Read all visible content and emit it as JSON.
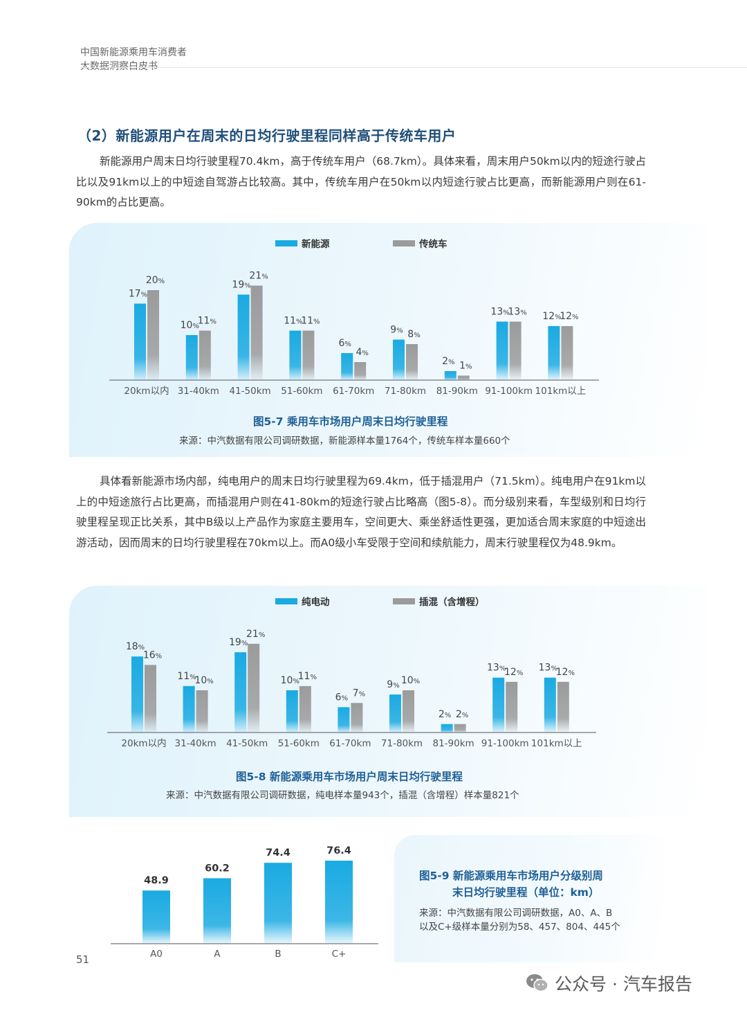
{
  "header": {
    "line1": "中国新能源乘用车消费者",
    "line2": "大数据洞察白皮书"
  },
  "section_title": "（2）新能源用户在周末的日均行驶里程同样高于传统车用户",
  "paragraph1": "新能源用户周末日均行驶里程70.4km，高于传统车用户（68.7km）。具体来看，周末用户50km以内的短途行驶占比以及91km以上的中短途自驾游占比较高。其中，传统车用户在50km以内短途行驶占比更高，而新能源用户则在61-90km的占比更高。",
  "paragraph2": "具体看新能源市场内部，纯电用户的周末日均行驶里程为69.4km，低于插混用户（71.5km）。纯电用户在91km以上的中短途旅行占比更高，而插混用户则在41-80km的短途行驶占比略高（图5-8）。而分级别来看，车型级别和日均行驶里程呈现正比关系，其中B级以上产品作为家庭主要用车，空间更大、乘坐舒适性更强，更加适合周末家庭的中短途出游活动，因而周末的日均行驶里程在70km以上。而A0级小车受限于空间和续航能力，周末行驶里程仅为48.9km。",
  "colors": {
    "blue": "#1aaae2",
    "gray": "#9b9b9b",
    "caption": "#1f5f96",
    "title": "#1f4e79"
  },
  "chart_data": [
    {
      "type": "bar",
      "caption": "图5-7 乘用车市场用户周末日均行驶里程",
      "source": "来源：中汽数据有限公司调研数据，新能源样本量1764个，传统车样本量660个",
      "categories": [
        "20km以内",
        "31-40km",
        "41-50km",
        "51-60km",
        "61-70km",
        "71-80km",
        "81-90km",
        "91-100km",
        "101km以上"
      ],
      "series": [
        {
          "name": "新能源",
          "values": [
            17,
            10,
            19,
            11,
            6,
            9,
            2,
            13,
            12
          ],
          "labels": [
            "17%",
            "10%",
            "19%",
            "11%",
            "6%",
            "9%",
            "2%",
            "13%",
            "12%"
          ]
        },
        {
          "name": "传统车",
          "values": [
            20,
            11,
            21,
            11,
            4,
            8,
            1,
            13,
            12
          ],
          "labels": [
            "20%",
            "11%",
            "21%",
            "11%",
            "4%",
            "8%",
            "1%",
            "13%",
            "12%"
          ]
        }
      ],
      "ylim": [
        0,
        22
      ],
      "legend": "top"
    },
    {
      "type": "bar",
      "caption": "图5-8 新能源乘用车市场用户周末日均行驶里程",
      "source": "来源：中汽数据有限公司调研数据，纯电样本量943个，插混（含增程）样本量821个",
      "categories": [
        "20km以内",
        "31-40km",
        "41-50km",
        "51-60km",
        "61-70km",
        "71-80km",
        "81-90km",
        "91-100km",
        "101km以上"
      ],
      "series": [
        {
          "name": "纯电动",
          "values": [
            18,
            11,
            19,
            10,
            6,
            9,
            2,
            13,
            13
          ],
          "labels": [
            "18%",
            "11%",
            "19%",
            "10%",
            "6%",
            "9%",
            "2%",
            "13%",
            "13%"
          ]
        },
        {
          "name": "插混（含增程）",
          "values": [
            16,
            10,
            21,
            11,
            7,
            10,
            2,
            12,
            12
          ],
          "labels": [
            "16%",
            "10%",
            "21%",
            "11%",
            "7%",
            "10%",
            "2%",
            "12%",
            "12%"
          ]
        }
      ],
      "ylim": [
        0,
        22
      ],
      "legend": "top"
    },
    {
      "type": "bar",
      "caption_line1": "图5-9 新能源乘用车市场用户分级别周",
      "caption_line2": "末日均行驶里程（单位：km）",
      "source_line1": "来源：中汽数据有限公司调研数据，A0、A、B",
      "source_line2": "以及C+级样本量分别为58、457、804、445个",
      "categories": [
        "A0",
        "A",
        "B",
        "C+"
      ],
      "values": [
        48.9,
        60.2,
        74.4,
        76.4
      ],
      "labels": [
        "48.9",
        "60.2",
        "74.4",
        "76.4"
      ],
      "ylim": [
        0,
        80
      ]
    }
  ],
  "page_number": "51",
  "watermark": "公众号 · 汽车报告"
}
